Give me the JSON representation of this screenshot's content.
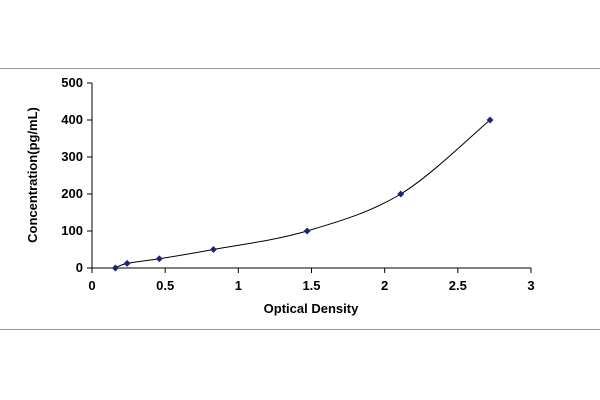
{
  "chart_data": {
    "type": "scatter",
    "title": "",
    "xlabel": "Optical Density",
    "ylabel": "Concentration(pg/mL)",
    "xlim": [
      0,
      3
    ],
    "ylim": [
      0,
      500
    ],
    "xticks": [
      0,
      0.5,
      1,
      1.5,
      2,
      2.5,
      3
    ],
    "xtick_labels": [
      "0",
      "0.5",
      "1",
      "1.5",
      "2",
      "2.5",
      "3"
    ],
    "yticks": [
      0,
      100,
      200,
      300,
      400,
      500
    ],
    "ytick_labels": [
      "0",
      "100",
      "200",
      "300",
      "400",
      "500"
    ],
    "grid": false,
    "legend": "none",
    "series": [
      {
        "x": [
          0.16,
          0.24,
          0.46,
          0.83,
          1.47,
          2.11,
          2.72
        ],
        "y": [
          0,
          12.5,
          25,
          50,
          100,
          200,
          400
        ],
        "marker": "diamond",
        "marker_color": "#1a237e",
        "trendline": "smooth"
      }
    ]
  }
}
